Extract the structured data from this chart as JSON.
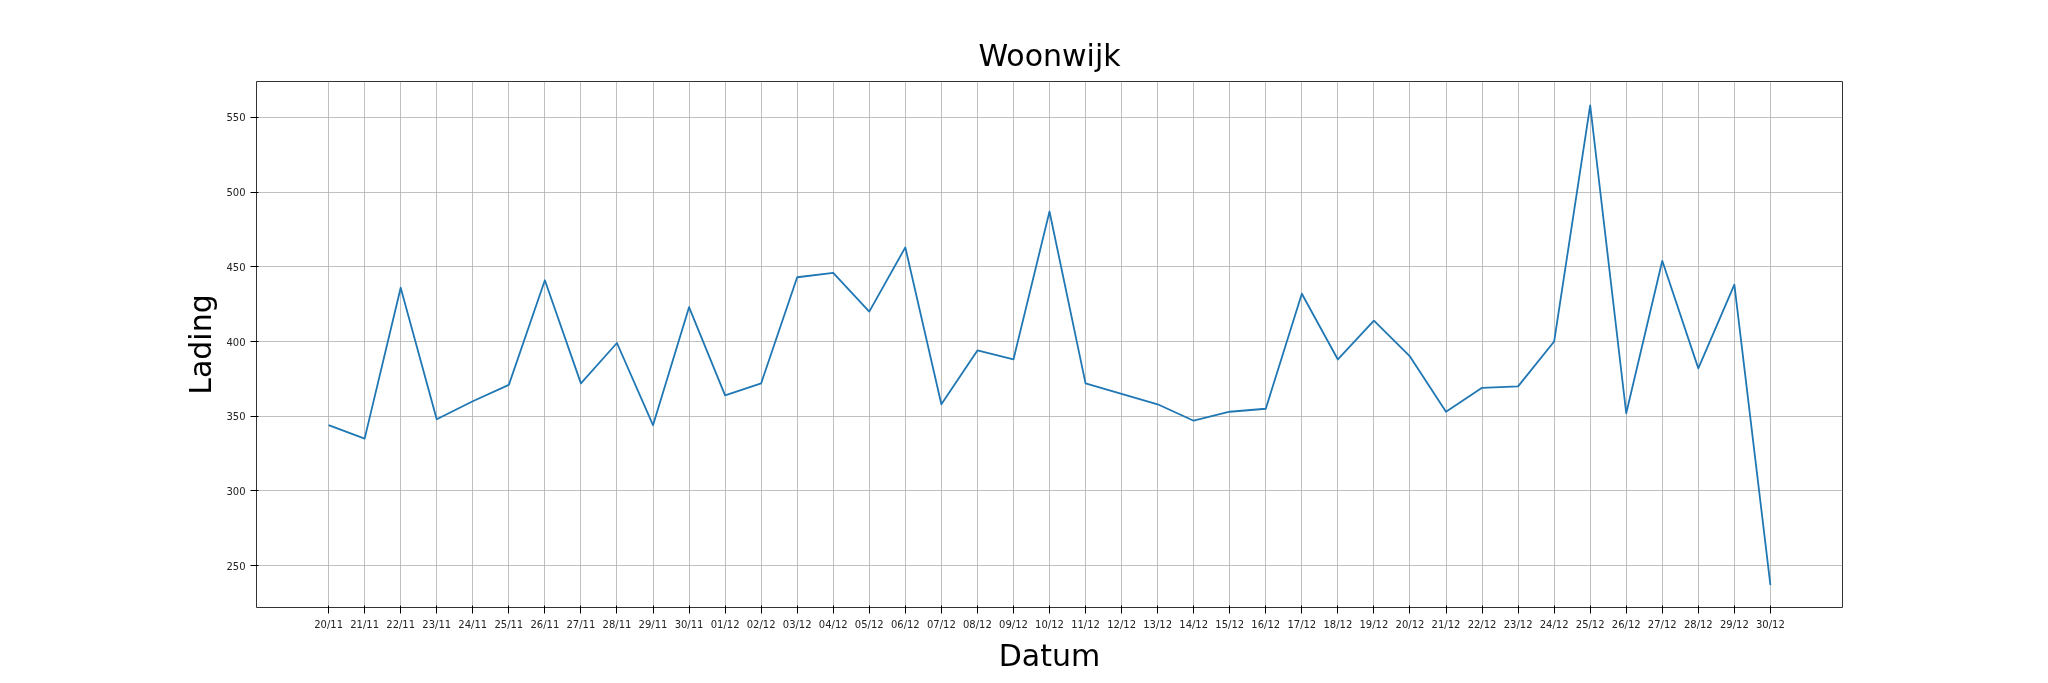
{
  "chart_data": {
    "type": "line",
    "title": "Woonwijk",
    "xlabel": "Datum",
    "ylabel": "Lading",
    "categories": [
      "20/11",
      "21/11",
      "22/11",
      "23/11",
      "24/11",
      "25/11",
      "26/11",
      "27/11",
      "28/11",
      "29/11",
      "30/11",
      "01/12",
      "02/12",
      "03/12",
      "04/12",
      "05/12",
      "06/12",
      "07/12",
      "08/12",
      "09/12",
      "10/12",
      "11/12",
      "12/12",
      "13/12",
      "14/12",
      "15/12",
      "16/12",
      "17/12",
      "18/12",
      "19/12",
      "20/12",
      "21/12",
      "22/12",
      "23/12",
      "24/12",
      "25/12",
      "26/12",
      "27/12",
      "28/12",
      "29/12",
      "30/12"
    ],
    "series": [
      {
        "color": "#1f77b4",
        "values": [
          344,
          335,
          436,
          348,
          360,
          371,
          441,
          372,
          399,
          344,
          423,
          364,
          372,
          443,
          446,
          420,
          463,
          358,
          394,
          388,
          487,
          372,
          365,
          358,
          347,
          353,
          355,
          432,
          388,
          414,
          390,
          353,
          369,
          370,
          400,
          558,
          352,
          454,
          382,
          438,
          237
        ]
      }
    ],
    "ylim": [
      222,
      574
    ],
    "yticks": [
      250,
      300,
      350,
      400,
      450,
      500,
      550
    ],
    "grid": true,
    "marker": "none",
    "line_style": "solid"
  }
}
